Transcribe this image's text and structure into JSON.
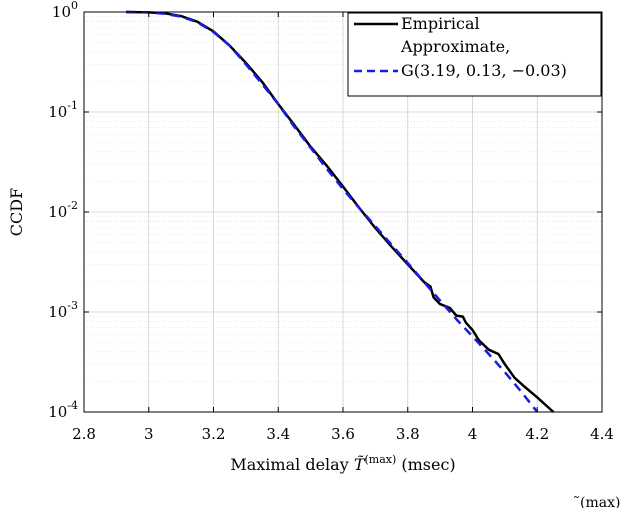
{
  "chart_data": {
    "type": "line",
    "xlabel": "Maximal delay T̃(max) (msec)",
    "xlabel_parts": {
      "prefix": "Maximal delay ",
      "symbol": "T̃",
      "sup": "(max)",
      "suffix": " (msec)"
    },
    "ylabel": "CCDF",
    "xlim": [
      2.8,
      4.4
    ],
    "ylim": [
      0.0001,
      1
    ],
    "yscale": "log",
    "grid": true,
    "legend_position": "top-right",
    "x_ticks": [
      2.8,
      3,
      3.2,
      3.4,
      3.6,
      3.8,
      4,
      4.2,
      4.4
    ],
    "x_tick_labels": [
      "2.8",
      "3",
      "3.2",
      "3.4",
      "3.6",
      "3.8",
      "4",
      "4.2",
      "4.4"
    ],
    "y_ticks": [
      {
        "value": 1,
        "base": "10",
        "exp": "0"
      },
      {
        "value": 0.1,
        "base": "10",
        "exp": "-1"
      },
      {
        "value": 0.01,
        "base": "10",
        "exp": "-2"
      },
      {
        "value": 0.001,
        "base": "10",
        "exp": "-3"
      },
      {
        "value": 0.0001,
        "base": "10",
        "exp": "-4"
      }
    ],
    "series": [
      {
        "name": "Empirical",
        "color": "#000000",
        "style": "solid",
        "points": [
          [
            2.93,
            1.0
          ],
          [
            3.0,
            0.99
          ],
          [
            3.05,
            0.97
          ],
          [
            3.1,
            0.91
          ],
          [
            3.15,
            0.8
          ],
          [
            3.2,
            0.64
          ],
          [
            3.25,
            0.46
          ],
          [
            3.3,
            0.31
          ],
          [
            3.35,
            0.2
          ],
          [
            3.4,
            0.12
          ],
          [
            3.45,
            0.074
          ],
          [
            3.5,
            0.045
          ],
          [
            3.55,
            0.029
          ],
          [
            3.6,
            0.018
          ],
          [
            3.65,
            0.011
          ],
          [
            3.7,
            0.0069
          ],
          [
            3.75,
            0.0045
          ],
          [
            3.8,
            0.003
          ],
          [
            3.85,
            0.002
          ],
          [
            3.87,
            0.0018
          ],
          [
            3.88,
            0.0014
          ],
          [
            3.9,
            0.0012
          ],
          [
            3.93,
            0.0011
          ],
          [
            3.95,
            0.00092
          ],
          [
            3.97,
            0.0009
          ],
          [
            3.98,
            0.00078
          ],
          [
            4.0,
            0.00066
          ],
          [
            4.02,
            0.00052
          ],
          [
            4.05,
            0.00042
          ],
          [
            4.08,
            0.00038
          ],
          [
            4.1,
            0.0003
          ],
          [
            4.13,
            0.00022
          ],
          [
            4.16,
            0.00018
          ],
          [
            4.2,
            0.00014
          ],
          [
            4.25,
            0.0001
          ]
        ]
      },
      {
        "name": "Approximate, G(3.19, 0.13, −0.03)",
        "color": "#1a1ae6",
        "style": "dashed",
        "points": [
          [
            2.93,
            1.0
          ],
          [
            3.0,
            0.99
          ],
          [
            3.05,
            0.96
          ],
          [
            3.1,
            0.9
          ],
          [
            3.15,
            0.79
          ],
          [
            3.2,
            0.63
          ],
          [
            3.25,
            0.46
          ],
          [
            3.3,
            0.3
          ],
          [
            3.35,
            0.19
          ],
          [
            3.4,
            0.12
          ],
          [
            3.45,
            0.071
          ],
          [
            3.5,
            0.044
          ],
          [
            3.55,
            0.027
          ],
          [
            3.6,
            0.017
          ],
          [
            3.65,
            0.011
          ],
          [
            3.7,
            0.0072
          ],
          [
            3.75,
            0.0047
          ],
          [
            3.8,
            0.0031
          ],
          [
            3.85,
            0.002
          ],
          [
            3.9,
            0.0013
          ],
          [
            3.95,
            0.00085
          ],
          [
            4.0,
            0.00057
          ],
          [
            4.05,
            0.00038
          ],
          [
            4.1,
            0.00025
          ],
          [
            4.15,
            0.00016
          ],
          [
            4.2,
            0.0001
          ]
        ]
      }
    ],
    "legend": [
      {
        "line1": "Empirical",
        "line2": ""
      },
      {
        "line1": "Approximate,",
        "line2": "G(3.19, 0.13, −0.03)"
      }
    ]
  },
  "crop_fragment": "̃(max)"
}
